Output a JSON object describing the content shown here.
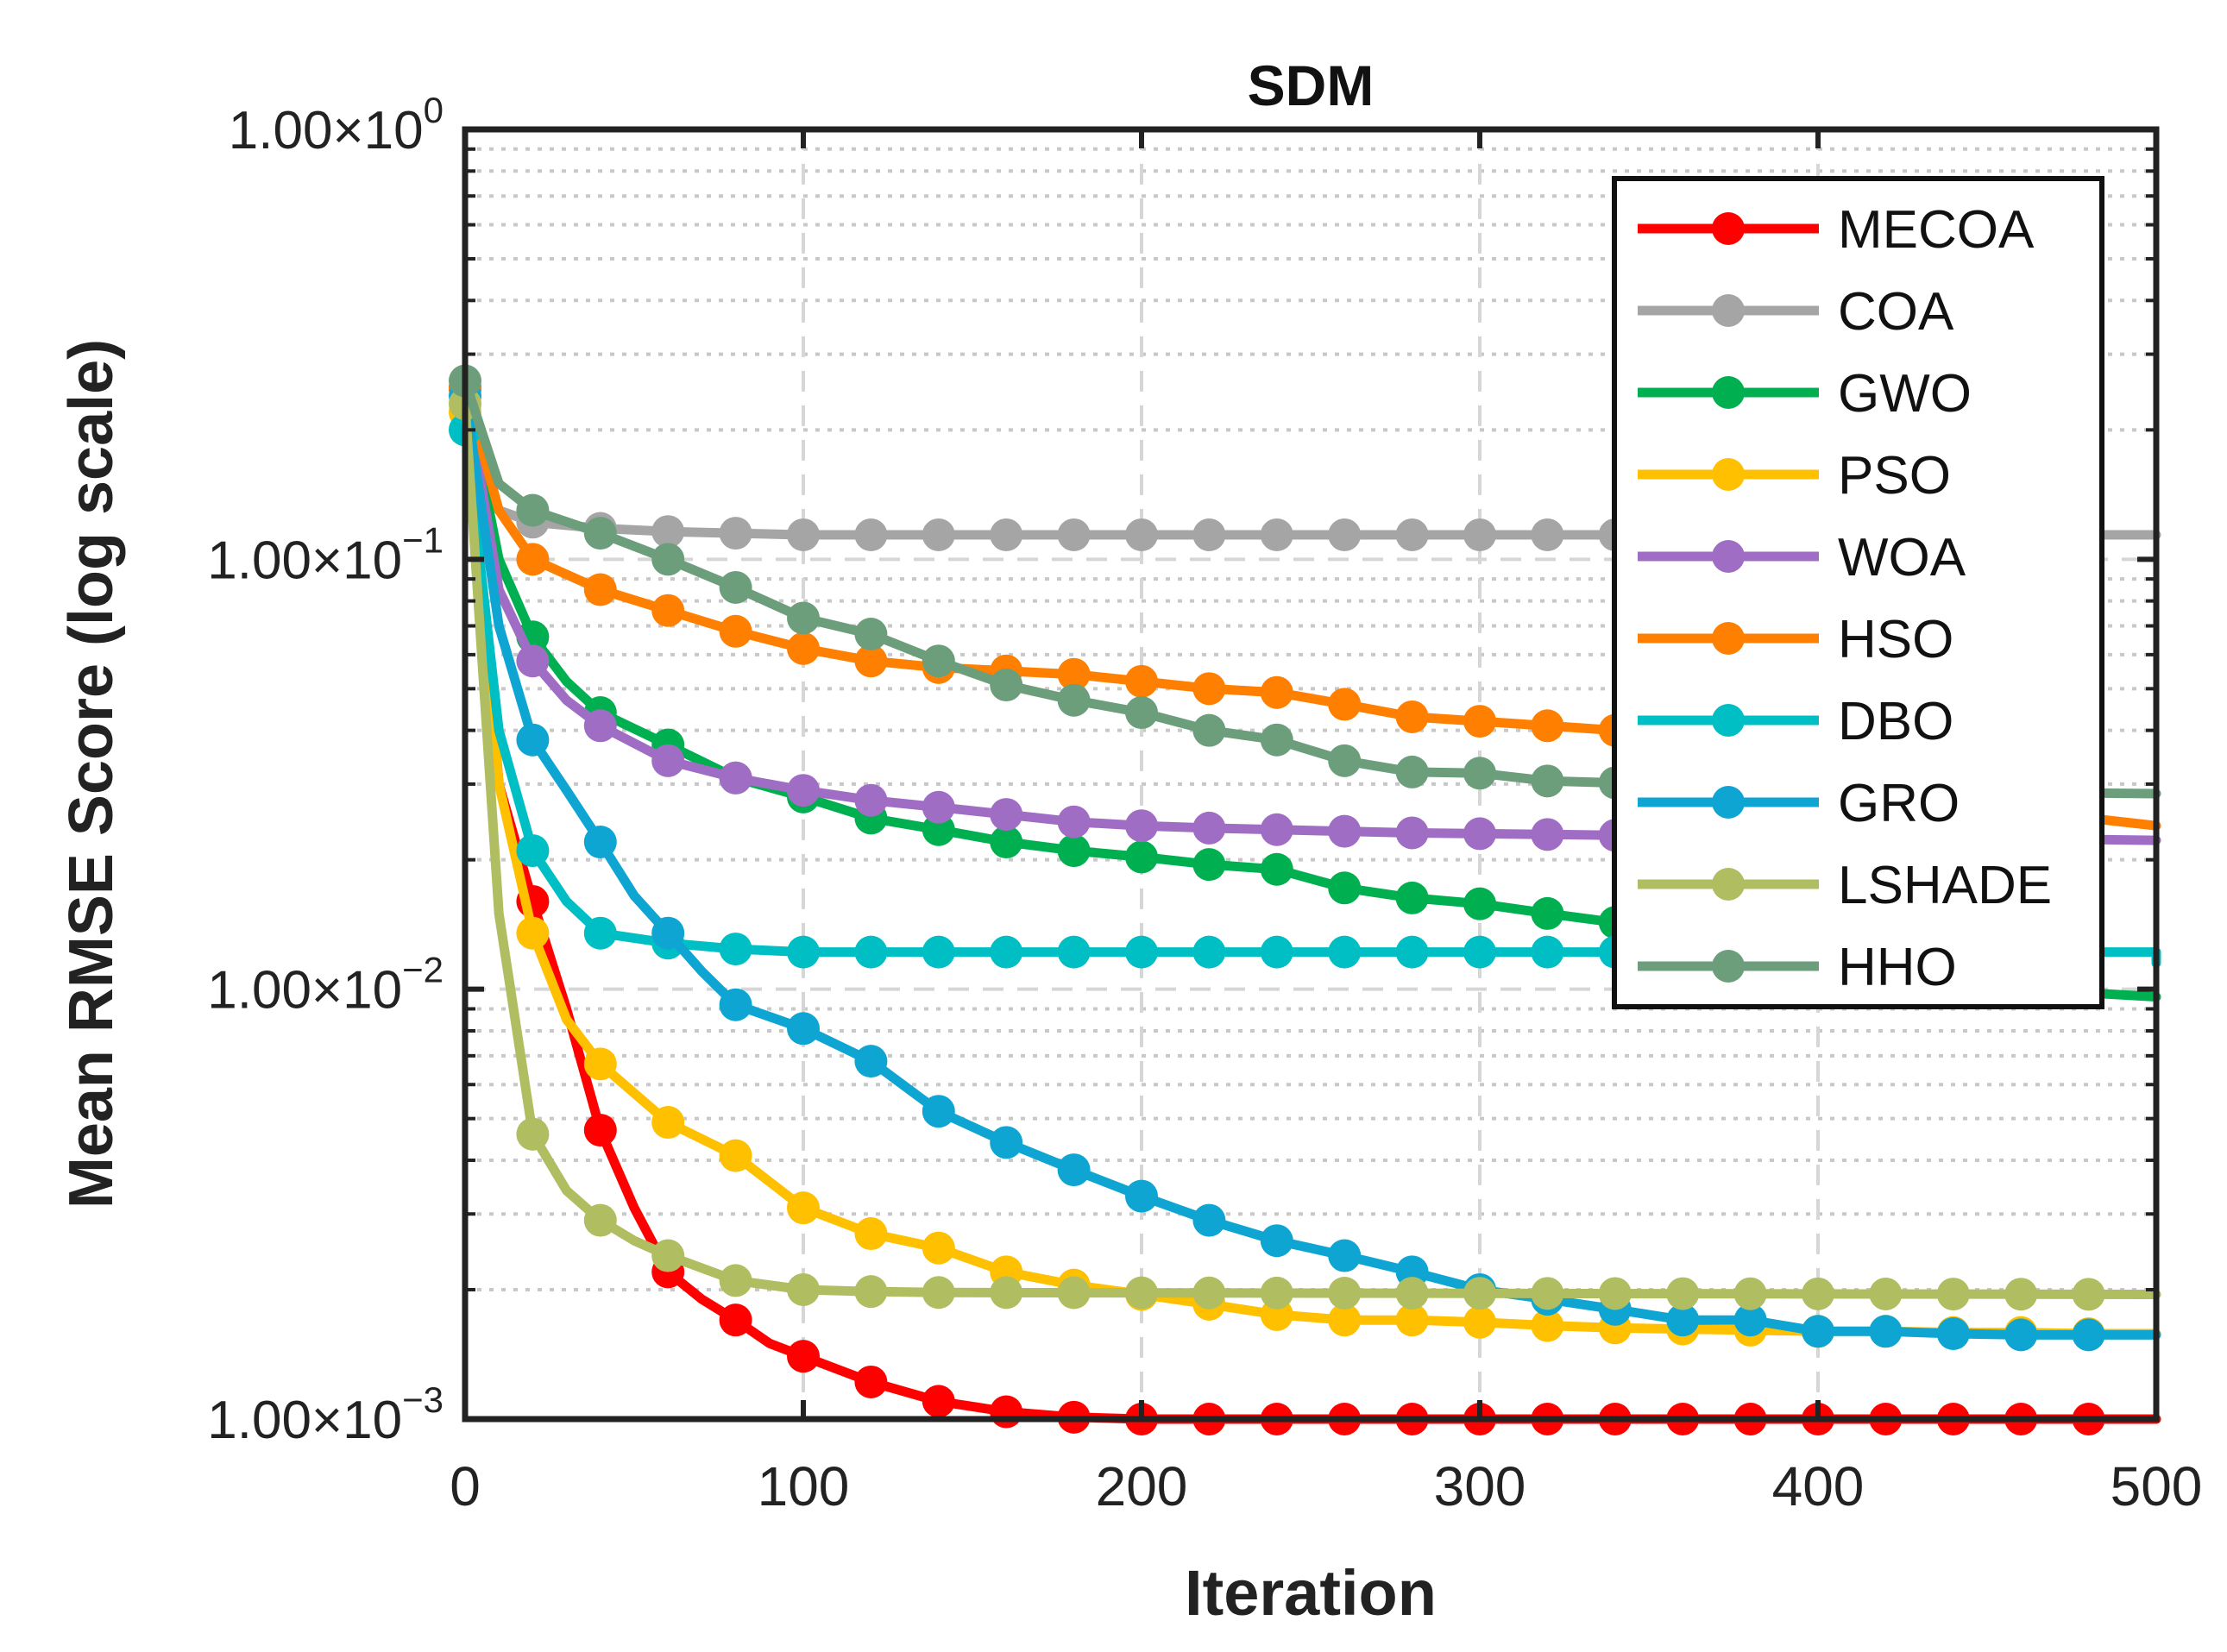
{
  "chart_data": {
    "type": "line",
    "title": "SDM",
    "xlabel": "Iteration",
    "ylabel": "Mean RMSE Score (log scale)",
    "xlim": [
      0,
      500
    ],
    "ylim": [
      0.001,
      1
    ],
    "yscale": "log",
    "grid": true,
    "legend_position": "top-right",
    "x_ticks": [
      {
        "value": 0,
        "label": "0"
      },
      {
        "value": 100,
        "label": "100"
      },
      {
        "value": 200,
        "label": "200"
      },
      {
        "value": 300,
        "label": "300"
      },
      {
        "value": 400,
        "label": "400"
      },
      {
        "value": 500,
        "label": "500"
      }
    ],
    "y_ticks": [
      {
        "value": 1,
        "mantissa": "1.00×10",
        "exponent": "0"
      },
      {
        "value": 0.1,
        "mantissa": "1.00×10",
        "exponent": "−1"
      },
      {
        "value": 0.01,
        "mantissa": "1.00×10",
        "exponent": "−2"
      },
      {
        "value": 0.001,
        "mantissa": "1.00×10",
        "exponent": "−3"
      }
    ],
    "series": [
      {
        "name": "MECOA",
        "color": "#ff0000",
        "points": [
          [
            0,
            0.25
          ],
          [
            10,
            0.03
          ],
          [
            20,
            0.016
          ],
          [
            30,
            0.009
          ],
          [
            40,
            0.0047
          ],
          [
            50,
            0.0031
          ],
          [
            60,
            0.0022
          ],
          [
            70,
            0.0019
          ],
          [
            80,
            0.0017
          ],
          [
            90,
            0.0015
          ],
          [
            100,
            0.0014
          ],
          [
            120,
            0.00122
          ],
          [
            140,
            0.0011
          ],
          [
            160,
            0.00104
          ],
          [
            180,
            0.00101
          ],
          [
            200,
            0.001
          ],
          [
            500,
            0.001
          ]
        ],
        "marker_x": [
          0,
          20,
          40,
          60,
          80,
          100,
          120,
          140,
          160,
          180,
          200,
          220,
          240,
          260,
          280,
          300,
          320,
          340,
          360,
          380,
          400,
          420,
          440,
          460,
          480
        ]
      },
      {
        "name": "COA",
        "color": "#a5a5a5",
        "points": [
          [
            0,
            0.25
          ],
          [
            10,
            0.13
          ],
          [
            20,
            0.122
          ],
          [
            40,
            0.118
          ],
          [
            60,
            0.116
          ],
          [
            80,
            0.115
          ],
          [
            100,
            0.114
          ],
          [
            500,
            0.114
          ]
        ],
        "marker_x": [
          0,
          20,
          40,
          60,
          80,
          100,
          120,
          140,
          160,
          180,
          200,
          220,
          240,
          260,
          280,
          300,
          320,
          340,
          360,
          380,
          400,
          420,
          440,
          460,
          480
        ]
      },
      {
        "name": "GWO",
        "color": "#00b050",
        "points": [
          [
            0,
            0.25
          ],
          [
            10,
            0.1
          ],
          [
            20,
            0.066
          ],
          [
            30,
            0.052
          ],
          [
            40,
            0.044
          ],
          [
            60,
            0.037
          ],
          [
            80,
            0.031
          ],
          [
            100,
            0.028
          ],
          [
            120,
            0.025
          ],
          [
            140,
            0.0235
          ],
          [
            160,
            0.022
          ],
          [
            180,
            0.021
          ],
          [
            200,
            0.0203
          ],
          [
            220,
            0.0195
          ],
          [
            240,
            0.019
          ],
          [
            260,
            0.0172
          ],
          [
            280,
            0.0163
          ],
          [
            300,
            0.0158
          ],
          [
            320,
            0.015
          ],
          [
            340,
            0.0143
          ],
          [
            360,
            0.0133
          ],
          [
            380,
            0.0123
          ],
          [
            400,
            0.0113
          ],
          [
            420,
            0.0107
          ],
          [
            440,
            0.0104
          ],
          [
            460,
            0.0101
          ],
          [
            480,
            0.0098
          ],
          [
            500,
            0.0096
          ]
        ],
        "marker_x": [
          0,
          20,
          40,
          60,
          80,
          100,
          120,
          140,
          160,
          180,
          200,
          220,
          240,
          260,
          280,
          300,
          320,
          340,
          360,
          380,
          400,
          420,
          440,
          460,
          480
        ]
      },
      {
        "name": "PSO",
        "color": "#ffc000",
        "points": [
          [
            0,
            0.22
          ],
          [
            10,
            0.03
          ],
          [
            20,
            0.0135
          ],
          [
            30,
            0.0085
          ],
          [
            40,
            0.0067
          ],
          [
            60,
            0.0049
          ],
          [
            80,
            0.0041
          ],
          [
            100,
            0.0031
          ],
          [
            120,
            0.0027
          ],
          [
            140,
            0.0025
          ],
          [
            160,
            0.0022
          ],
          [
            180,
            0.00205
          ],
          [
            200,
            0.00195
          ],
          [
            220,
            0.00185
          ],
          [
            240,
            0.00175
          ],
          [
            260,
            0.0017
          ],
          [
            280,
            0.0017
          ],
          [
            300,
            0.00168
          ],
          [
            320,
            0.00165
          ],
          [
            340,
            0.00163
          ],
          [
            360,
            0.00162
          ],
          [
            380,
            0.00161
          ],
          [
            400,
            0.0016
          ],
          [
            420,
            0.0016
          ],
          [
            440,
            0.00159
          ],
          [
            460,
            0.00159
          ],
          [
            480,
            0.00158
          ],
          [
            500,
            0.00158
          ]
        ],
        "marker_x": [
          0,
          20,
          40,
          60,
          80,
          100,
          120,
          140,
          160,
          180,
          200,
          220,
          240,
          260,
          280,
          300,
          320,
          340,
          360,
          380,
          400,
          420,
          440,
          460,
          480
        ]
      },
      {
        "name": "WOA",
        "color": "#a06dc5",
        "points": [
          [
            0,
            0.25
          ],
          [
            10,
            0.085
          ],
          [
            20,
            0.058
          ],
          [
            30,
            0.047
          ],
          [
            40,
            0.041
          ],
          [
            60,
            0.034
          ],
          [
            80,
            0.031
          ],
          [
            100,
            0.029
          ],
          [
            120,
            0.0275
          ],
          [
            140,
            0.0265
          ],
          [
            160,
            0.0255
          ],
          [
            180,
            0.0245
          ],
          [
            200,
            0.024
          ],
          [
            220,
            0.0237
          ],
          [
            240,
            0.0235
          ],
          [
            260,
            0.0233
          ],
          [
            280,
            0.0231
          ],
          [
            300,
            0.023
          ],
          [
            320,
            0.0229
          ],
          [
            340,
            0.0228
          ],
          [
            360,
            0.0227
          ],
          [
            380,
            0.0226
          ],
          [
            400,
            0.0225
          ],
          [
            420,
            0.0224
          ],
          [
            440,
            0.0224
          ],
          [
            460,
            0.0223
          ],
          [
            480,
            0.0223
          ],
          [
            500,
            0.0222
          ]
        ],
        "marker_x": [
          0,
          20,
          40,
          60,
          80,
          100,
          120,
          140,
          160,
          180,
          200,
          220,
          240,
          260,
          280,
          300,
          320,
          340,
          360,
          380,
          400,
          420,
          440,
          460,
          480
        ]
      },
      {
        "name": "HSO",
        "color": "#ff7f00",
        "points": [
          [
            0,
            0.25
          ],
          [
            10,
            0.13
          ],
          [
            20,
            0.1
          ],
          [
            40,
            0.085
          ],
          [
            60,
            0.076
          ],
          [
            80,
            0.068
          ],
          [
            100,
            0.062
          ],
          [
            120,
            0.058
          ],
          [
            140,
            0.056
          ],
          [
            160,
            0.055
          ],
          [
            180,
            0.054
          ],
          [
            200,
            0.052
          ],
          [
            220,
            0.05
          ],
          [
            240,
            0.049
          ],
          [
            260,
            0.046
          ],
          [
            280,
            0.043
          ],
          [
            300,
            0.042
          ],
          [
            320,
            0.041
          ],
          [
            340,
            0.04
          ],
          [
            360,
            0.036
          ],
          [
            380,
            0.034
          ],
          [
            400,
            0.031
          ],
          [
            420,
            0.029
          ],
          [
            440,
            0.027
          ],
          [
            460,
            0.026
          ],
          [
            480,
            0.025
          ],
          [
            500,
            0.024
          ]
        ],
        "marker_x": [
          0,
          20,
          40,
          60,
          80,
          100,
          120,
          140,
          160,
          180,
          200,
          220,
          240,
          260,
          280,
          300,
          320,
          340,
          360,
          380,
          400,
          420,
          440,
          460,
          480
        ]
      },
      {
        "name": "DBO",
        "color": "#00bfc4",
        "points": [
          [
            0,
            0.2
          ],
          [
            10,
            0.04
          ],
          [
            20,
            0.021
          ],
          [
            30,
            0.016
          ],
          [
            40,
            0.0135
          ],
          [
            60,
            0.0128
          ],
          [
            80,
            0.0124
          ],
          [
            100,
            0.0122
          ],
          [
            500,
            0.0122
          ],
          [
            500,
            0.0115
          ]
        ],
        "marker_x": [
          0,
          20,
          40,
          60,
          80,
          100,
          120,
          140,
          160,
          180,
          200,
          220,
          240,
          260,
          280,
          300,
          320,
          340,
          360,
          380,
          400,
          420,
          440,
          460,
          480
        ]
      },
      {
        "name": "GRO",
        "color": "#0ea5d3",
        "points": [
          [
            0,
            0.24
          ],
          [
            10,
            0.07
          ],
          [
            20,
            0.038
          ],
          [
            30,
            0.029
          ],
          [
            40,
            0.022
          ],
          [
            50,
            0.0165
          ],
          [
            60,
            0.0135
          ],
          [
            70,
            0.011
          ],
          [
            80,
            0.0092
          ],
          [
            100,
            0.0081
          ],
          [
            120,
            0.0068
          ],
          [
            140,
            0.0052
          ],
          [
            160,
            0.0044
          ],
          [
            180,
            0.0038
          ],
          [
            200,
            0.0033
          ],
          [
            220,
            0.0029
          ],
          [
            240,
            0.0026
          ],
          [
            260,
            0.0024
          ],
          [
            280,
            0.0022
          ],
          [
            300,
            0.002
          ],
          [
            320,
            0.0019
          ],
          [
            340,
            0.0018
          ],
          [
            360,
            0.0017
          ],
          [
            380,
            0.0017
          ],
          [
            400,
            0.0016
          ],
          [
            420,
            0.0016
          ],
          [
            440,
            0.00158
          ],
          [
            460,
            0.00157
          ],
          [
            480,
            0.00157
          ],
          [
            500,
            0.00157
          ]
        ],
        "marker_x": [
          0,
          20,
          40,
          60,
          80,
          100,
          120,
          140,
          160,
          180,
          200,
          220,
          240,
          260,
          280,
          300,
          320,
          340,
          360,
          380,
          400,
          420,
          440,
          460,
          480
        ]
      },
      {
        "name": "LSHADE",
        "color": "#b0bd60",
        "points": [
          [
            0,
            0.23
          ],
          [
            10,
            0.015
          ],
          [
            20,
            0.0046
          ],
          [
            30,
            0.0034
          ],
          [
            40,
            0.0029
          ],
          [
            50,
            0.0026
          ],
          [
            60,
            0.0024
          ],
          [
            80,
            0.0021
          ],
          [
            100,
            0.002
          ],
          [
            120,
            0.00198
          ],
          [
            140,
            0.00197
          ],
          [
            500,
            0.00195
          ]
        ],
        "marker_x": [
          0,
          20,
          40,
          60,
          80,
          100,
          120,
          140,
          160,
          180,
          200,
          220,
          240,
          260,
          280,
          300,
          320,
          340,
          360,
          380,
          400,
          420,
          440,
          460,
          480
        ]
      },
      {
        "name": "HHO",
        "color": "#6c9e7c",
        "points": [
          [
            0,
            0.26
          ],
          [
            10,
            0.15
          ],
          [
            20,
            0.13
          ],
          [
            40,
            0.115
          ],
          [
            60,
            0.1
          ],
          [
            80,
            0.086
          ],
          [
            100,
            0.073
          ],
          [
            120,
            0.067
          ],
          [
            140,
            0.058
          ],
          [
            160,
            0.051
          ],
          [
            180,
            0.047
          ],
          [
            200,
            0.044
          ],
          [
            220,
            0.04
          ],
          [
            240,
            0.038
          ],
          [
            260,
            0.034
          ],
          [
            280,
            0.032
          ],
          [
            300,
            0.0318
          ],
          [
            320,
            0.0305
          ],
          [
            340,
            0.0302
          ],
          [
            360,
            0.03
          ],
          [
            380,
            0.0295
          ],
          [
            400,
            0.0292
          ],
          [
            420,
            0.029
          ],
          [
            440,
            0.0288
          ],
          [
            460,
            0.0287
          ],
          [
            480,
            0.0286
          ],
          [
            500,
            0.0285
          ]
        ],
        "marker_x": [
          0,
          20,
          40,
          60,
          80,
          100,
          120,
          140,
          160,
          180,
          200,
          220,
          240,
          260,
          280,
          300,
          320,
          340,
          360,
          380,
          400,
          420,
          440,
          460,
          480
        ]
      }
    ]
  }
}
